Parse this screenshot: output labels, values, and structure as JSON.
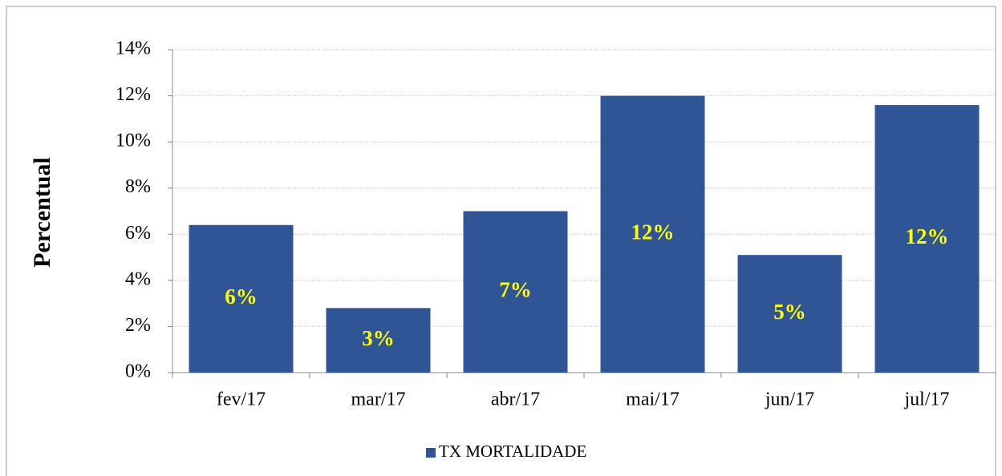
{
  "chart_data": {
    "type": "bar",
    "y_label": "Percentual",
    "categories": [
      "fev/17",
      "mar/17",
      "abr/17",
      "mai/17",
      "jun/17",
      "jul/17"
    ],
    "series": [
      {
        "name": "TX MORTALIDADE",
        "color": "#2f5597",
        "values": [
          6.4,
          2.8,
          7.0,
          12.0,
          5.1,
          11.6
        ],
        "value_labels": [
          "6%",
          "3%",
          "7%",
          "12%",
          "5%",
          "12%"
        ],
        "label_color": "#ffff00"
      }
    ],
    "ylim": [
      0,
      14
    ],
    "yticks": [
      {
        "value": 0,
        "label": "0%"
      },
      {
        "value": 2,
        "label": "2%"
      },
      {
        "value": 4,
        "label": "4%"
      },
      {
        "value": 6,
        "label": "6%"
      },
      {
        "value": 8,
        "label": "8%"
      },
      {
        "value": 10,
        "label": "10%"
      },
      {
        "value": 12,
        "label": "12%"
      },
      {
        "value": 14,
        "label": "14%"
      }
    ],
    "grid": true,
    "legend": "bottom"
  }
}
